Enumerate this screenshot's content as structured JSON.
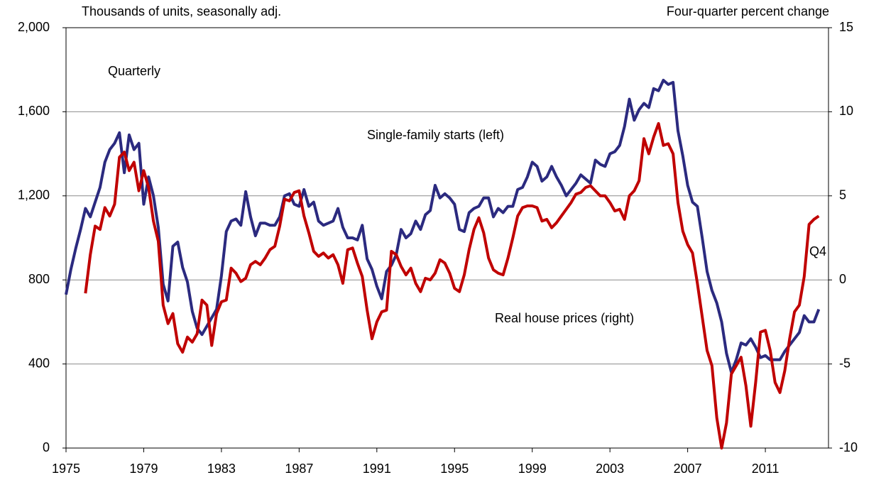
{
  "chart_data": {
    "type": "line",
    "left_axis_label": "Thousands of units, seasonally adj.",
    "right_axis_label": "Four-quarter percent change",
    "annotations": [
      "Quarterly",
      "Single-family starts (left)",
      "Real house prices (right)",
      "Q4"
    ],
    "x": [
      1975,
      1975.25,
      1975.5,
      1975.75,
      1976,
      1976.25,
      1976.5,
      1976.75,
      1977,
      1977.25,
      1977.5,
      1977.75,
      1978,
      1978.25,
      1978.5,
      1978.75,
      1979,
      1979.25,
      1979.5,
      1979.75,
      1980,
      1980.25,
      1980.5,
      1980.75,
      1981,
      1981.25,
      1981.5,
      1981.75,
      1982,
      1982.25,
      1982.5,
      1982.75,
      1983,
      1983.25,
      1983.5,
      1983.75,
      1984,
      1984.25,
      1984.5,
      1984.75,
      1985,
      1985.25,
      1985.5,
      1985.75,
      1986,
      1986.25,
      1986.5,
      1986.75,
      1987,
      1987.25,
      1987.5,
      1987.75,
      1988,
      1988.25,
      1988.5,
      1988.75,
      1989,
      1989.25,
      1989.5,
      1989.75,
      1990,
      1990.25,
      1990.5,
      1990.75,
      1991,
      1991.25,
      1991.5,
      1991.75,
      1992,
      1992.25,
      1992.5,
      1992.75,
      1993,
      1993.25,
      1993.5,
      1993.75,
      1994,
      1994.25,
      1994.5,
      1994.75,
      1995,
      1995.25,
      1995.5,
      1995.75,
      1996,
      1996.25,
      1996.5,
      1996.75,
      1997,
      1997.25,
      1997.5,
      1997.75,
      1998,
      1998.25,
      1998.5,
      1998.75,
      1999,
      1999.25,
      1999.5,
      1999.75,
      2000,
      2000.25,
      2000.5,
      2000.75,
      2001,
      2001.25,
      2001.5,
      2001.75,
      2002,
      2002.25,
      2002.5,
      2002.75,
      2003,
      2003.25,
      2003.5,
      2003.75,
      2004,
      2004.25,
      2004.5,
      2004.75,
      2005,
      2005.25,
      2005.5,
      2005.75,
      2006,
      2006.25,
      2006.5,
      2006.75,
      2007,
      2007.25,
      2007.5,
      2007.75,
      2008,
      2008.25,
      2008.5,
      2008.75,
      2009,
      2009.25,
      2009.5,
      2009.75,
      2010,
      2010.25,
      2010.5,
      2010.75,
      2011,
      2011.25,
      2011.5,
      2011.75,
      2012,
      2012.25,
      2012.5,
      2012.75,
      2013,
      2013.25,
      2013.5,
      2013.75
    ],
    "series": [
      {
        "name": "Single-family starts (left)",
        "color": "#2b2a7f",
        "axis": "y",
        "values": [
          730,
          850,
          950,
          1040,
          1140,
          1100,
          1170,
          1240,
          1360,
          1420,
          1450,
          1500,
          1310,
          1490,
          1420,
          1450,
          1160,
          1290,
          1200,
          1050,
          780,
          700,
          960,
          980,
          860,
          790,
          650,
          570,
          540,
          580,
          620,
          660,
          820,
          1030,
          1080,
          1090,
          1060,
          1220,
          1100,
          1010,
          1070,
          1070,
          1060,
          1060,
          1100,
          1200,
          1210,
          1160,
          1150,
          1230,
          1150,
          1170,
          1080,
          1060,
          1070,
          1080,
          1140,
          1050,
          1000,
          1000,
          990,
          1060,
          900,
          850,
          770,
          710,
          840,
          870,
          920,
          1040,
          1000,
          1020,
          1080,
          1040,
          1110,
          1130,
          1250,
          1190,
          1210,
          1190,
          1160,
          1040,
          1030,
          1120,
          1140,
          1150,
          1190,
          1190,
          1100,
          1140,
          1120,
          1150,
          1150,
          1230,
          1240,
          1290,
          1360,
          1340,
          1270,
          1290,
          1340,
          1290,
          1250,
          1200,
          1230,
          1260,
          1300,
          1280,
          1260,
          1370,
          1350,
          1340,
          1400,
          1410,
          1440,
          1530,
          1660,
          1560,
          1610,
          1640,
          1620,
          1710,
          1700,
          1750,
          1730,
          1740,
          1510,
          1390,
          1250,
          1170,
          1150,
          1000,
          840,
          750,
          690,
          600,
          450,
          360,
          420,
          500,
          490,
          520,
          480,
          430,
          440,
          420,
          420,
          420,
          460,
          490,
          520,
          550,
          630,
          600,
          600,
          660
        ]
      },
      {
        "name": "Real house prices (right)",
        "color": "#c00000",
        "axis": "y2",
        "values": [
          null,
          null,
          null,
          null,
          -0.8,
          1.5,
          3.2,
          3.0,
          4.3,
          3.8,
          4.5,
          7.3,
          7.6,
          6.5,
          7.0,
          5.3,
          6.5,
          5.5,
          3.5,
          2.3,
          -1.5,
          -2.6,
          -2.0,
          -3.8,
          -4.3,
          -3.4,
          -3.7,
          -3.2,
          -1.2,
          -1.5,
          -3.9,
          -2.0,
          -1.3,
          -1.2,
          0.7,
          0.4,
          -0.1,
          0.1,
          0.9,
          1.1,
          0.9,
          1.3,
          1.8,
          2.0,
          3.2,
          4.8,
          4.7,
          5.2,
          5.3,
          3.8,
          2.8,
          1.7,
          1.4,
          1.6,
          1.3,
          1.5,
          0.9,
          -0.2,
          1.8,
          1.9,
          1.0,
          0.2,
          -1.8,
          -3.5,
          -2.5,
          -1.9,
          -1.8,
          1.7,
          1.5,
          0.8,
          0.3,
          0.7,
          -0.2,
          -0.7,
          0.1,
          0.0,
          0.4,
          1.2,
          1.0,
          0.4,
          -0.5,
          -0.7,
          0.3,
          1.8,
          3.0,
          3.7,
          2.8,
          1.3,
          0.6,
          0.4,
          0.3,
          1.3,
          2.5,
          3.8,
          4.3,
          4.4,
          4.4,
          4.3,
          3.5,
          3.6,
          3.1,
          3.4,
          3.8,
          4.2,
          4.6,
          5.1,
          5.2,
          5.5,
          5.6,
          5.3,
          5.0,
          5.0,
          4.6,
          4.1,
          4.2,
          3.6,
          5.0,
          5.3,
          5.9,
          8.4,
          7.5,
          8.5,
          9.3,
          8.0,
          8.1,
          7.5,
          4.6,
          2.9,
          2.1,
          1.6,
          -0.2,
          -2.2,
          -4.2,
          -5.1,
          -8.2,
          -10.0,
          -8.5,
          -5.6,
          -5.1,
          -4.6,
          -6.3,
          -8.7,
          -6.1,
          -3.1,
          -3.0,
          -4.2,
          -6.1,
          -6.7,
          -5.4,
          -3.5,
          -1.9,
          -1.5,
          0.2,
          3.3,
          3.6,
          3.8
        ]
      }
    ],
    "xlim": [
      1975,
      2014.25
    ],
    "xticks": [
      1975,
      1979,
      1983,
      1987,
      1991,
      1995,
      1999,
      2003,
      2007,
      2011
    ],
    "ylim": [
      0,
      2000
    ],
    "yticks": [
      0,
      {
        "value": 400,
        "label": "400"
      },
      800,
      {
        "value": 1200,
        "label": "1,200"
      },
      {
        "value": 1600,
        "label": "1,600"
      },
      {
        "value": 2000,
        "label": "2,000"
      }
    ],
    "y2lim": [
      -10,
      15
    ],
    "y2ticks": [
      -10,
      -5,
      0,
      5,
      10,
      15
    ],
    "grid": true
  }
}
